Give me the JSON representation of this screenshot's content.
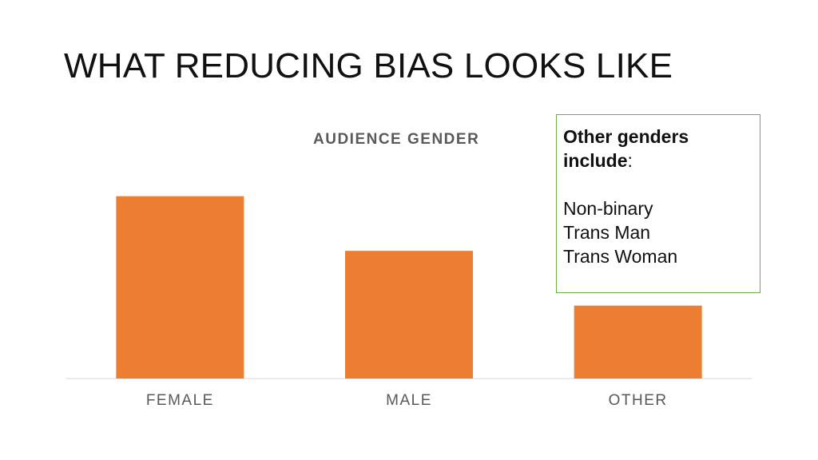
{
  "slide": {
    "title": "WHAT REDUCING BIAS LOOKS LIKE"
  },
  "note": {
    "heading_bold": "Other genders include",
    "heading_suffix": ":",
    "items": [
      "Non-binary",
      "Trans Man",
      "Trans Woman"
    ],
    "border_color": "#70ad47"
  },
  "chart_data": {
    "type": "bar",
    "title": "AUDIENCE GENDER",
    "categories": [
      "FEMALE",
      "MALE",
      "OTHER"
    ],
    "values": [
      50,
      35,
      20
    ],
    "ylim": [
      0,
      60
    ],
    "grid": false,
    "legend": "none",
    "bar_color": "#ed7d31"
  }
}
